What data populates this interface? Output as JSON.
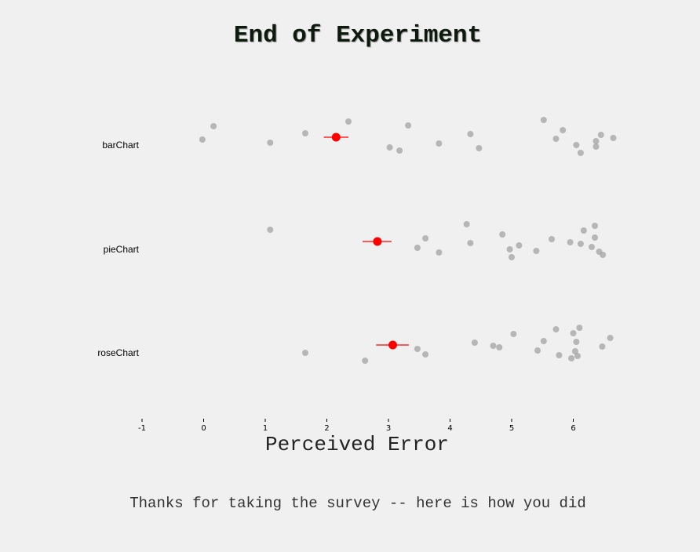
{
  "page": {
    "title": "End of Experiment",
    "footer": "Thanks for taking the survey -- here is how you did"
  },
  "chart_data": {
    "type": "scatter",
    "xlabel": "Perceived Error",
    "ylabel": "",
    "xlim": [
      -1,
      7
    ],
    "x_ticks": [
      "-1",
      "0",
      "1",
      "2",
      "3",
      "4",
      "5",
      "6"
    ],
    "grid": false,
    "colors": {
      "points": "#a0a0a0",
      "mean": "#ff0000",
      "ci": "#ff0000"
    },
    "categories": [
      "barChart",
      "pieChart",
      "roseChart"
    ],
    "series": [
      {
        "category": "barChart",
        "mean": 2.15,
        "ci": [
          1.95,
          2.35
        ],
        "points": [
          -0.02,
          0.16,
          1.08,
          1.65,
          2.35,
          3.02,
          3.18,
          3.32,
          3.82,
          4.33,
          4.47,
          5.52,
          5.72,
          5.83,
          6.05,
          6.12,
          6.37,
          6.37,
          6.45,
          6.65
        ]
      },
      {
        "category": "pieChart",
        "mean": 2.82,
        "ci": [
          2.58,
          3.05
        ],
        "points": [
          1.08,
          3.47,
          3.6,
          3.82,
          4.27,
          4.33,
          4.85,
          4.97,
          5.0,
          5.12,
          5.4,
          5.65,
          5.95,
          6.12,
          6.17,
          6.3,
          6.35,
          6.35,
          6.42,
          6.48
        ]
      },
      {
        "category": "roseChart",
        "mean": 3.07,
        "ci": [
          2.8,
          3.33
        ],
        "points": [
          1.65,
          2.62,
          3.47,
          3.6,
          4.4,
          4.7,
          4.8,
          5.03,
          5.42,
          5.52,
          5.72,
          5.77,
          5.97,
          6.0,
          6.03,
          6.05,
          6.07,
          6.1,
          6.47,
          6.6
        ]
      }
    ]
  }
}
